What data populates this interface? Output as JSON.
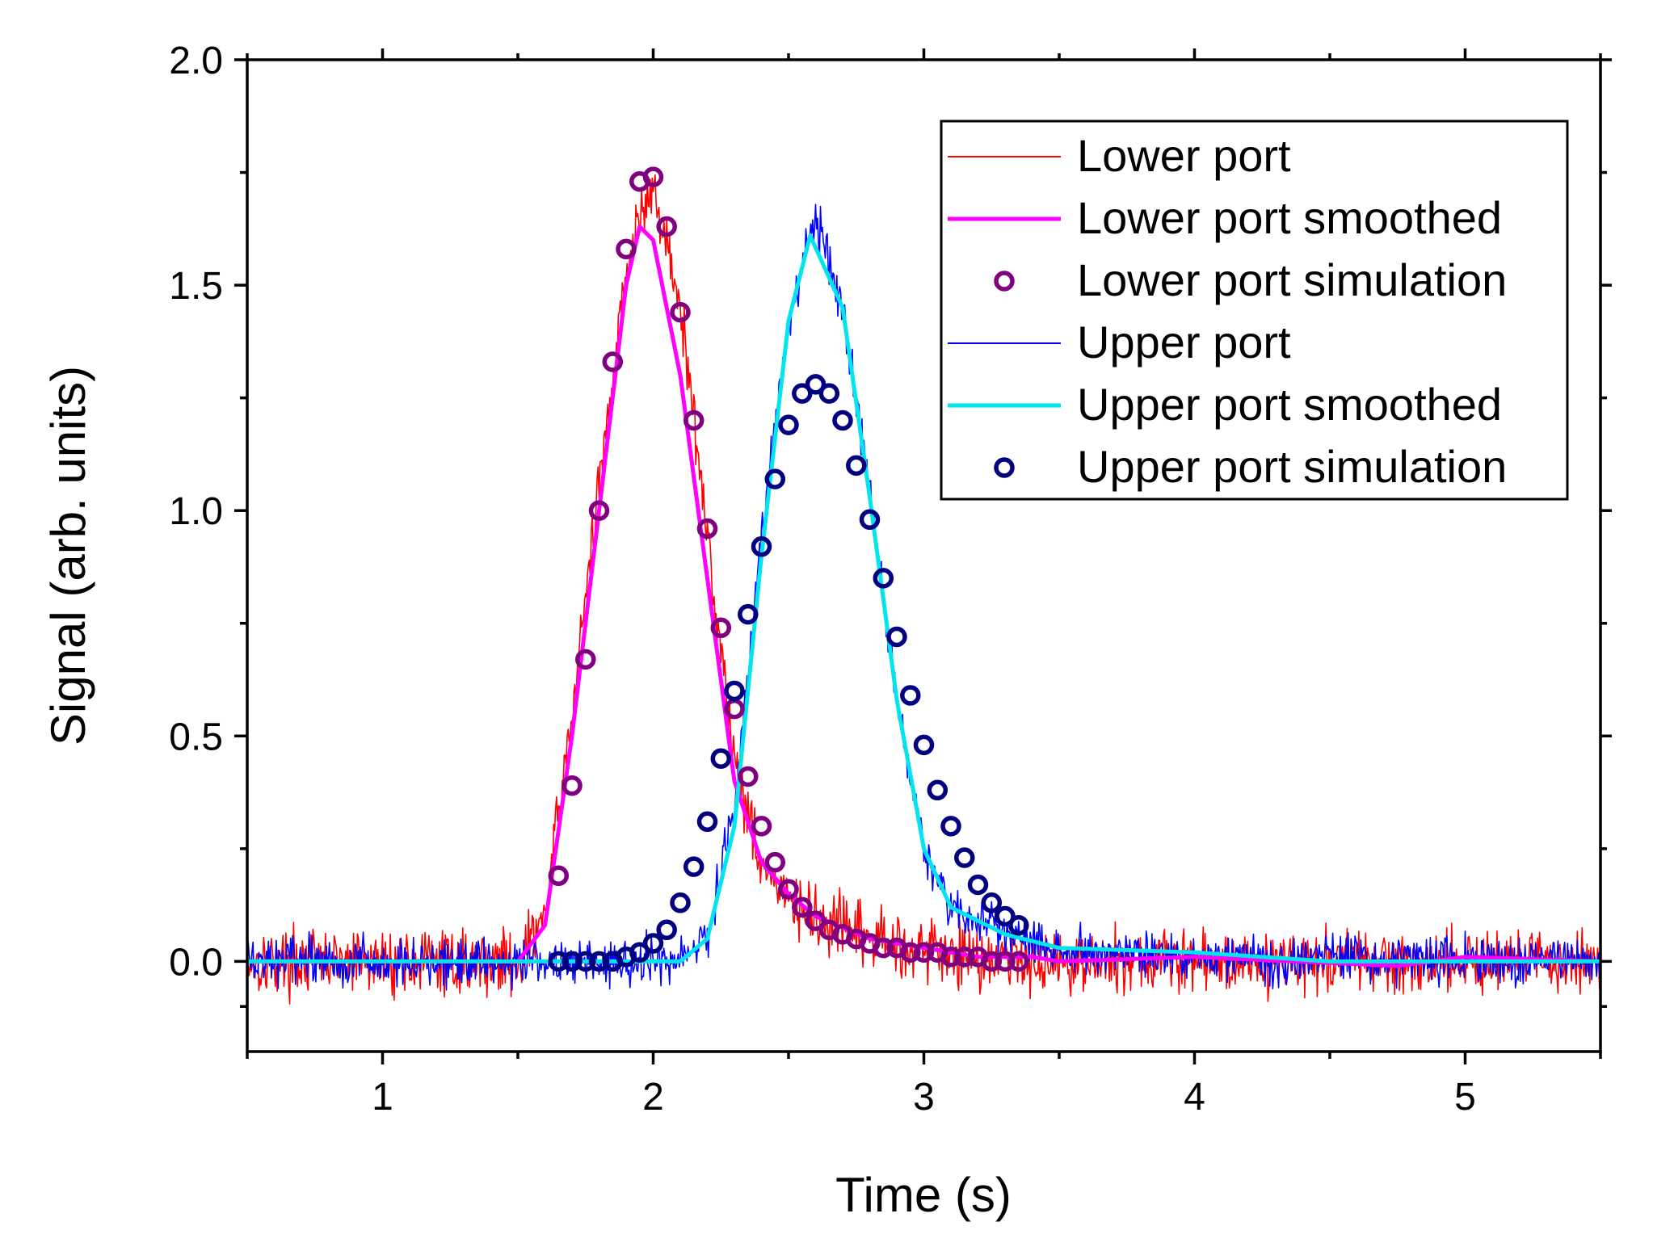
{
  "chart_data": {
    "type": "line",
    "xlabel": "Time (s)",
    "ylabel": "Signal (arb. units)",
    "xlim": [
      0.5,
      5.5
    ],
    "ylim": [
      -0.2,
      2.0
    ],
    "x_ticks": [
      1,
      2,
      3,
      4,
      5
    ],
    "x_tick_labels": [
      "1",
      "2",
      "3",
      "4",
      "5"
    ],
    "x_minor_ticks": [
      0.5,
      1.5,
      2.5,
      3.5,
      4.5,
      5.5
    ],
    "y_ticks": [
      0.0,
      0.5,
      1.0,
      1.5,
      2.0
    ],
    "y_tick_labels": [
      "0.0",
      "0.5",
      "1.0",
      "1.5",
      "2.0"
    ],
    "y_minor_ticks": [
      -0.1,
      0.25,
      0.75,
      1.25,
      1.75
    ],
    "grid": false,
    "legend_position": "top-right",
    "series": [
      {
        "name": "Lower port",
        "kind": "noisy-line",
        "color": "#ff0000",
        "noise_amplitude": 0.06,
        "x": [
          0.5,
          1.5,
          1.6,
          1.7,
          1.8,
          1.9,
          2.0,
          2.1,
          2.2,
          2.3,
          2.4,
          2.5,
          2.6,
          2.8,
          3.0,
          3.2,
          3.5,
          4.0,
          5.5
        ],
        "y": [
          0.0,
          0.0,
          0.1,
          0.55,
          1.05,
          1.55,
          1.72,
          1.45,
          0.95,
          0.45,
          0.22,
          0.13,
          0.09,
          0.05,
          0.03,
          0.01,
          0.0,
          0.0,
          0.0
        ]
      },
      {
        "name": "Lower port smoothed",
        "kind": "line",
        "color": "#ff00ff",
        "x": [
          0.5,
          1.5,
          1.6,
          1.7,
          1.8,
          1.9,
          1.95,
          2.0,
          2.1,
          2.2,
          2.3,
          2.4,
          2.5,
          2.6,
          2.8,
          3.0,
          3.2,
          3.4,
          3.5,
          4.0,
          4.75,
          5.0,
          5.5
        ],
        "y": [
          0.0,
          0.0,
          0.08,
          0.5,
          1.0,
          1.5,
          1.63,
          1.6,
          1.3,
          0.85,
          0.4,
          0.22,
          0.15,
          0.1,
          0.05,
          0.03,
          0.01,
          0.01,
          0.0,
          0.01,
          -0.01,
          0.01,
          0.0
        ]
      },
      {
        "name": "Lower port simulation",
        "kind": "markers",
        "color": "#800080",
        "x": [
          1.65,
          1.7,
          1.75,
          1.8,
          1.85,
          1.9,
          1.95,
          2.0,
          2.05,
          2.1,
          2.15,
          2.2,
          2.25,
          2.3,
          2.35,
          2.4,
          2.45,
          2.5,
          2.55,
          2.6,
          2.65,
          2.7,
          2.75,
          2.8,
          2.85,
          2.9,
          2.95,
          3.0,
          3.05,
          3.1,
          3.15,
          3.2,
          3.25,
          3.3,
          3.35
        ],
        "y": [
          0.19,
          0.39,
          0.67,
          1.0,
          1.33,
          1.58,
          1.73,
          1.74,
          1.63,
          1.44,
          1.2,
          0.96,
          0.74,
          0.56,
          0.41,
          0.3,
          0.22,
          0.16,
          0.12,
          0.09,
          0.07,
          0.06,
          0.05,
          0.04,
          0.03,
          0.03,
          0.02,
          0.02,
          0.02,
          0.01,
          0.01,
          0.01,
          0.0,
          0.0,
          0.0
        ]
      },
      {
        "name": "Upper port",
        "kind": "noisy-line",
        "color": "#0000ff",
        "noise_amplitude": 0.045,
        "x": [
          0.5,
          2.1,
          2.2,
          2.3,
          2.35,
          2.4,
          2.5,
          2.6,
          2.7,
          2.8,
          2.9,
          3.0,
          3.1,
          3.2,
          3.3,
          3.5,
          4.0,
          5.5
        ],
        "y": [
          0.0,
          0.0,
          0.05,
          0.35,
          0.65,
          0.95,
          1.42,
          1.65,
          1.45,
          1.05,
          0.58,
          0.25,
          0.12,
          0.09,
          0.06,
          0.03,
          0.01,
          0.0
        ]
      },
      {
        "name": "Upper port smoothed",
        "kind": "line",
        "color": "#00e5ee",
        "x": [
          0.5,
          2.1,
          2.2,
          2.3,
          2.35,
          2.4,
          2.5,
          2.58,
          2.7,
          2.8,
          2.9,
          3.0,
          3.1,
          3.2,
          3.3,
          3.5,
          4.0,
          4.5,
          5.0,
          5.5
        ],
        "y": [
          0.0,
          0.0,
          0.05,
          0.3,
          0.6,
          0.9,
          1.42,
          1.61,
          1.45,
          1.03,
          0.58,
          0.25,
          0.12,
          0.09,
          0.06,
          0.03,
          0.02,
          0.0,
          0.0,
          0.0
        ]
      },
      {
        "name": "Upper port simulation",
        "kind": "markers",
        "color": "#000080",
        "x": [
          1.65,
          1.7,
          1.75,
          1.8,
          1.85,
          1.9,
          1.95,
          2.0,
          2.05,
          2.1,
          2.15,
          2.2,
          2.25,
          2.3,
          2.35,
          2.4,
          2.45,
          2.5,
          2.55,
          2.6,
          2.65,
          2.7,
          2.75,
          2.8,
          2.85,
          2.9,
          2.95,
          3.0,
          3.05,
          3.1,
          3.15,
          3.2,
          3.25,
          3.3,
          3.35
        ],
        "y": [
          0.0,
          0.0,
          0.0,
          0.0,
          0.0,
          0.01,
          0.02,
          0.04,
          0.07,
          0.13,
          0.21,
          0.31,
          0.45,
          0.6,
          0.77,
          0.92,
          1.07,
          1.19,
          1.26,
          1.28,
          1.26,
          1.2,
          1.1,
          0.98,
          0.85,
          0.72,
          0.59,
          0.48,
          0.38,
          0.3,
          0.23,
          0.17,
          0.13,
          0.1,
          0.08
        ]
      }
    ]
  }
}
